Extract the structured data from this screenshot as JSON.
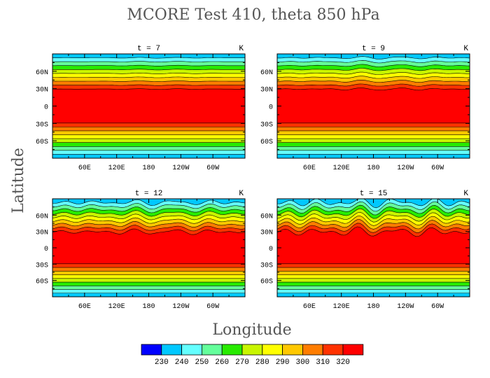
{
  "chart_data": {
    "type": "heatmap",
    "title": "MCORE Test 410, theta 850 hPa",
    "xlabel": "Longitude",
    "ylabel": "Latitude",
    "units_label": "K",
    "x_ticks": [
      "60E",
      "120E",
      "180",
      "120W",
      "60W"
    ],
    "y_ticks": [
      "60N",
      "30N",
      "0",
      "30S",
      "60S"
    ],
    "colorbar": {
      "levels": [
        230,
        240,
        250,
        260,
        270,
        280,
        290,
        300,
        310,
        320
      ],
      "colors": [
        "#0000ff",
        "#00c8ff",
        "#64ffff",
        "#64ff9b",
        "#28eb00",
        "#c8f500",
        "#ffff00",
        "#ffc800",
        "#ff7d00",
        "#ff3200",
        "#ff0000"
      ]
    },
    "panels": [
      {
        "label": "t = 7",
        "wave_amplitude": 0.12
      },
      {
        "label": "t = 9",
        "wave_amplitude": 0.35
      },
      {
        "label": "t = 12",
        "wave_amplitude": 0.7
      },
      {
        "label": "t = 15",
        "wave_amplitude": 1.0
      }
    ]
  }
}
